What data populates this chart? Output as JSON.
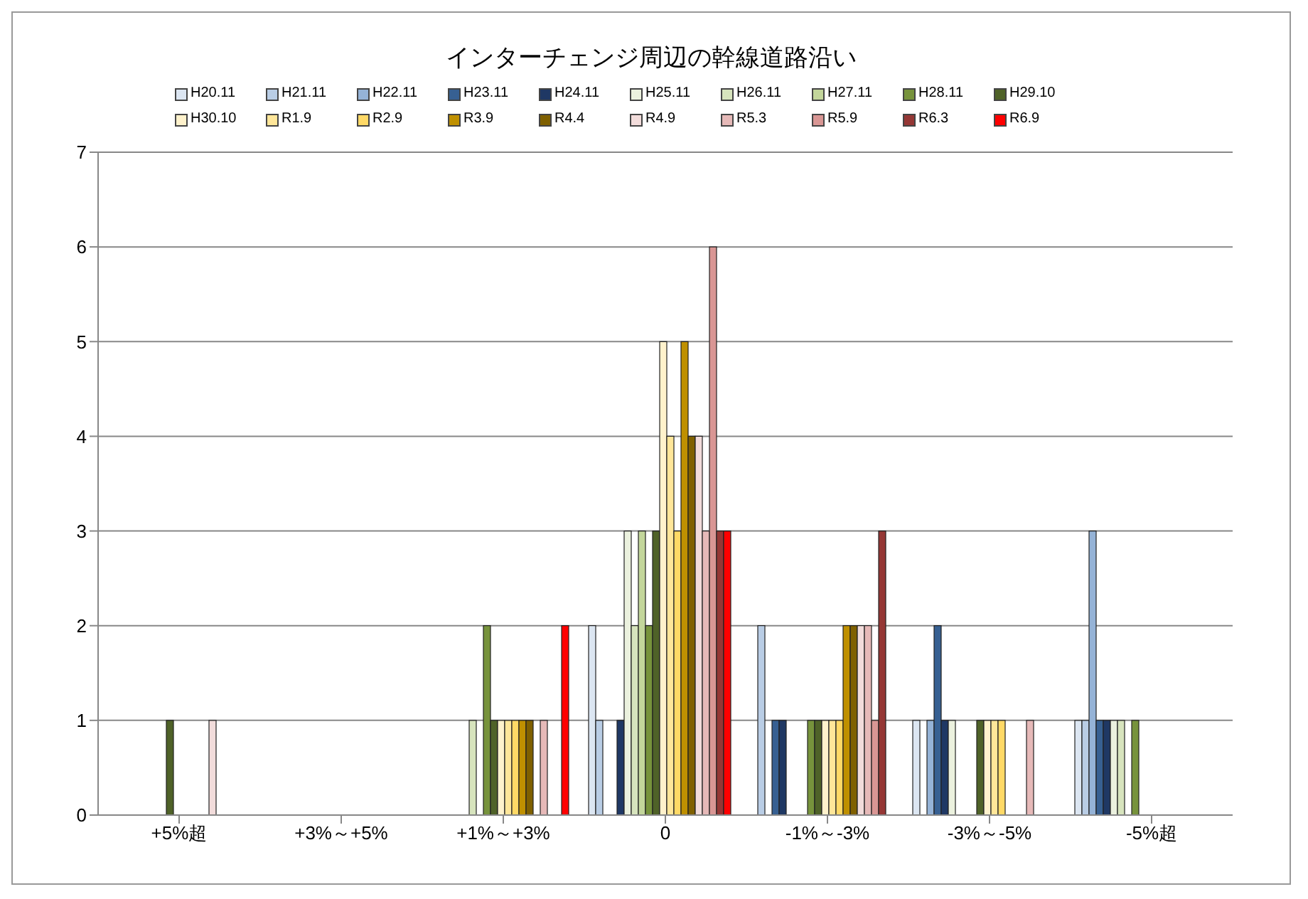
{
  "chart_data": {
    "type": "bar",
    "title": "インターチェンジ周辺の幹線道路沿い",
    "categories": [
      "+5%超",
      "+3%～+5%",
      "+1%～+3%",
      "0",
      "-1%～-3%",
      "-3%～-5%",
      "-5%超"
    ],
    "series": [
      {
        "name": "H20.11",
        "color": "#dce6f2",
        "values": [
          0,
          0,
          0,
          2,
          0,
          1,
          1
        ]
      },
      {
        "name": "H21.11",
        "color": "#b9cde5",
        "values": [
          0,
          0,
          0,
          1,
          2,
          0,
          1
        ]
      },
      {
        "name": "H22.11",
        "color": "#95b3d7",
        "values": [
          0,
          0,
          0,
          0,
          0,
          1,
          3
        ]
      },
      {
        "name": "H23.11",
        "color": "#376092",
        "values": [
          0,
          0,
          0,
          0,
          1,
          2,
          1
        ]
      },
      {
        "name": "H24.11",
        "color": "#1f3864",
        "values": [
          0,
          0,
          0,
          1,
          1,
          1,
          1
        ]
      },
      {
        "name": "H25.11",
        "color": "#ebf1de",
        "values": [
          0,
          0,
          0,
          3,
          0,
          1,
          1
        ]
      },
      {
        "name": "H26.11",
        "color": "#d7e4bd",
        "values": [
          0,
          0,
          1,
          2,
          0,
          0,
          1
        ]
      },
      {
        "name": "H27.11",
        "color": "#c3d69b",
        "values": [
          0,
          0,
          0,
          3,
          0,
          0,
          0
        ]
      },
      {
        "name": "H28.11",
        "color": "#77933c",
        "values": [
          0,
          0,
          2,
          2,
          1,
          0,
          1
        ]
      },
      {
        "name": "H29.10",
        "color": "#4f6228",
        "values": [
          1,
          0,
          1,
          3,
          1,
          1,
          0
        ]
      },
      {
        "name": "H30.10",
        "color": "#fff2cc",
        "values": [
          0,
          0,
          1,
          5,
          1,
          1,
          0
        ]
      },
      {
        "name": "R1.9",
        "color": "#ffe699",
        "values": [
          0,
          0,
          1,
          4,
          1,
          1,
          0
        ]
      },
      {
        "name": "R2.9",
        "color": "#ffd966",
        "values": [
          0,
          0,
          1,
          3,
          1,
          1,
          0
        ]
      },
      {
        "name": "R3.9",
        "color": "#bf9000",
        "values": [
          0,
          0,
          1,
          5,
          2,
          0,
          0
        ]
      },
      {
        "name": "R4.4",
        "color": "#7f6000",
        "values": [
          0,
          0,
          1,
          4,
          2,
          0,
          0
        ]
      },
      {
        "name": "R4.9",
        "color": "#f2dcdb",
        "values": [
          1,
          0,
          0,
          4,
          2,
          0,
          0
        ]
      },
      {
        "name": "R5.3",
        "color": "#e6b9b8",
        "values": [
          0,
          0,
          1,
          3,
          2,
          1,
          0
        ]
      },
      {
        "name": "R5.9",
        "color": "#d99694",
        "values": [
          0,
          0,
          0,
          6,
          1,
          0,
          0
        ]
      },
      {
        "name": "R6.3",
        "color": "#953735",
        "values": [
          0,
          0,
          0,
          3,
          3,
          0,
          0
        ]
      },
      {
        "name": "R6.9",
        "color": "#ff0000",
        "values": [
          0,
          0,
          2,
          3,
          0,
          0,
          0
        ]
      }
    ],
    "ylim": [
      0,
      7
    ],
    "yticks": [
      0,
      1,
      2,
      3,
      4,
      5,
      6,
      7
    ],
    "grid": "y",
    "legend": "top"
  }
}
